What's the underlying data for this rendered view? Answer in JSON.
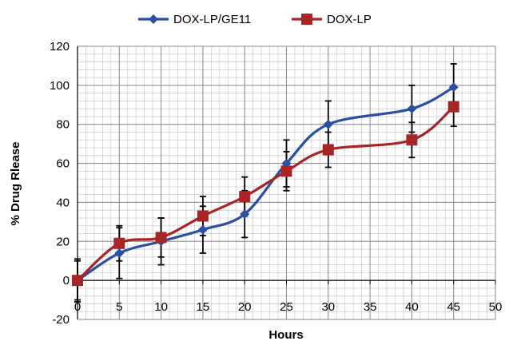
{
  "chart_data": {
    "type": "line",
    "title": "",
    "xlabel": "Hours",
    "ylabel": "% Drug Rlease",
    "xlim": [
      0,
      50
    ],
    "ylim": [
      -20,
      120
    ],
    "xticks": [
      0,
      5,
      10,
      15,
      20,
      25,
      30,
      35,
      40,
      45,
      50
    ],
    "yticks": [
      -20,
      0,
      20,
      40,
      60,
      80,
      100,
      120
    ],
    "grid": true,
    "legend_position": "top-center",
    "series": [
      {
        "name": "DOX-LP/GE11",
        "color": "#2b4fa3",
        "marker": "diamond",
        "x": [
          0,
          5,
          10,
          15,
          20,
          25,
          30,
          40,
          45
        ],
        "y": [
          0,
          14,
          20,
          26,
          34,
          60,
          80,
          88,
          99
        ],
        "error": [
          11,
          13,
          12,
          12,
          12,
          12,
          12,
          12,
          12
        ]
      },
      {
        "name": "DOX-LP",
        "color": "#a82525",
        "marker": "square",
        "x": [
          0,
          5,
          10,
          15,
          20,
          25,
          30,
          40,
          45
        ],
        "y": [
          0,
          19,
          22,
          33,
          43,
          56,
          67,
          72,
          89
        ],
        "error": [
          10,
          9,
          10,
          10,
          10,
          10,
          9,
          9,
          10
        ]
      }
    ]
  }
}
